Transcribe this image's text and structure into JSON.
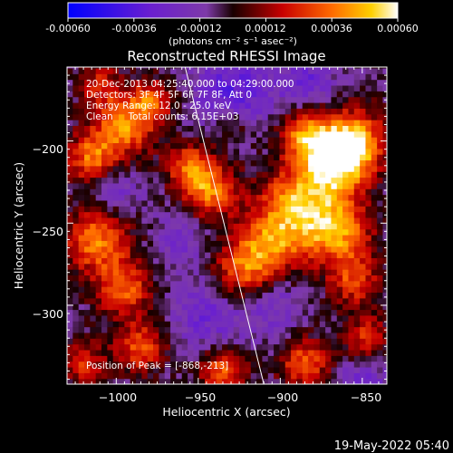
{
  "colorbar": {
    "min": -0.0006,
    "max": 0.0006,
    "ticks": [
      -0.0006,
      -0.00036,
      -0.00012,
      0.00012,
      0.00036,
      0.0006
    ],
    "tick_labels": [
      "-0.00060",
      "-0.00036",
      "-0.00012",
      "0.00012",
      "0.00036",
      "0.00060"
    ],
    "unit": "(photons cm⁻² s⁻¹ asec⁻²)"
  },
  "chart_data": {
    "type": "heatmap",
    "title": "Reconstructed RHESSI Image",
    "xlabel": "Heliocentric X (arcsec)",
    "ylabel": "Heliocentric Y (arcsec)",
    "xlim": [
      -1030,
      -835
    ],
    "ylim": [
      -348,
      -155
    ],
    "xticks": [
      -1000,
      -950,
      -900,
      -850
    ],
    "yticks": [
      -200,
      -250,
      -300
    ],
    "xtick_labels": [
      "−1000",
      "−950",
      "−900",
      "−850"
    ],
    "ytick_labels": [
      "−200",
      "−250",
      "−300"
    ],
    "peak": {
      "x": -868,
      "y": -213
    },
    "limb_line": [
      {
        "x": -958,
        "y": -155
      },
      {
        "x": -910,
        "y": -348
      }
    ],
    "annotations": [
      "20-Dec-2013 04:25:40.000 to 04:29:00.000",
      "Detectors: 3F 4F 5F 6F 7F 8F, Att 0",
      "Energy Range: 12.0 - 25.0 keV",
      "Clean     Total counts: 6.15E+03"
    ],
    "peak_label": "Position of Peak = [-868,-213]",
    "hotspots": [
      {
        "x": -868,
        "y": -213,
        "v": 0.00058,
        "s": 14
      },
      {
        "x": -855,
        "y": -200,
        "v": 0.00048,
        "s": 14
      },
      {
        "x": -885,
        "y": -195,
        "v": 0.0004,
        "s": 11
      },
      {
        "x": -890,
        "y": -240,
        "v": 0.0005,
        "s": 16
      },
      {
        "x": -865,
        "y": -255,
        "v": 0.00046,
        "s": 14
      },
      {
        "x": -908,
        "y": -265,
        "v": 0.0004,
        "s": 14
      },
      {
        "x": -925,
        "y": -280,
        "v": 0.00034,
        "s": 12
      },
      {
        "x": -943,
        "y": -230,
        "v": 0.00042,
        "s": 12
      },
      {
        "x": -955,
        "y": -215,
        "v": 0.00036,
        "s": 10
      },
      {
        "x": -995,
        "y": -190,
        "v": 0.00046,
        "s": 13
      },
      {
        "x": -1015,
        "y": -210,
        "v": 0.0004,
        "s": 11
      },
      {
        "x": -978,
        "y": -175,
        "v": 0.00034,
        "s": 9
      },
      {
        "x": -1012,
        "y": -260,
        "v": 0.00044,
        "s": 14
      },
      {
        "x": -995,
        "y": -290,
        "v": 0.00038,
        "s": 12
      },
      {
        "x": -985,
        "y": -325,
        "v": 0.00036,
        "s": 11
      },
      {
        "x": -1020,
        "y": -335,
        "v": 0.00032,
        "s": 9
      },
      {
        "x": -935,
        "y": -340,
        "v": 0.0004,
        "s": 10
      },
      {
        "x": -885,
        "y": -335,
        "v": 0.00038,
        "s": 11
      },
      {
        "x": -848,
        "y": -320,
        "v": 0.0003,
        "s": 10
      },
      {
        "x": -1010,
        "y": -165,
        "v": 0.00026,
        "s": 9
      },
      {
        "x": -930,
        "y": -190,
        "v": 0.00018,
        "s": 8
      },
      {
        "x": -855,
        "y": -285,
        "v": 0.00032,
        "s": 11
      }
    ],
    "cold_regions": [
      {
        "x": -930,
        "y": -170,
        "v": -0.00028,
        "s": 16
      },
      {
        "x": -885,
        "y": -165,
        "v": -0.00022,
        "s": 13
      },
      {
        "x": -945,
        "y": -305,
        "v": -0.0002,
        "s": 16
      },
      {
        "x": -905,
        "y": -300,
        "v": -0.00016,
        "s": 14
      },
      {
        "x": -1000,
        "y": -230,
        "v": -0.00016,
        "s": 11
      },
      {
        "x": -960,
        "y": -260,
        "v": -0.00014,
        "s": 12
      },
      {
        "x": -850,
        "y": -345,
        "v": -0.00018,
        "s": 12
      }
    ]
  },
  "footer": {
    "timestamp": "19-May-2022 05:40"
  }
}
